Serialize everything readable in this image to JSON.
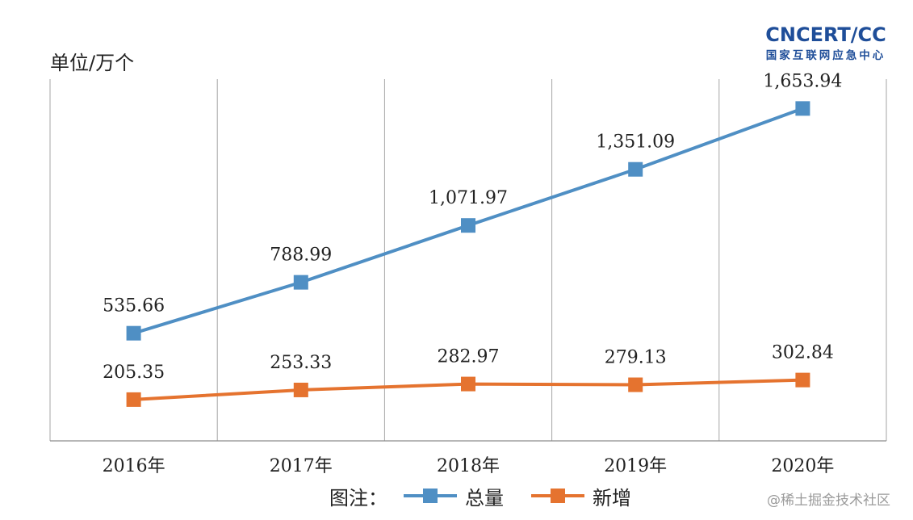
{
  "chart_data": {
    "type": "line",
    "unit_label": "单位/万个",
    "categories": [
      "2016年",
      "2017年",
      "2018年",
      "2019年",
      "2020年"
    ],
    "series": [
      {
        "name": "总量",
        "color": "#4f8fc4",
        "values": [
          535.66,
          788.99,
          1071.97,
          1351.09,
          1653.94
        ],
        "labels": [
          "535.66",
          "788.99",
          "1,071.97",
          "1,351.09",
          "1,653.94"
        ]
      },
      {
        "name": "新增",
        "color": "#e5732f",
        "values": [
          205.35,
          253.33,
          282.97,
          279.13,
          302.84
        ],
        "labels": [
          "205.35",
          "253.33",
          "282.97",
          "279.13",
          "302.84"
        ]
      }
    ],
    "ylim": [
      0,
      1800
    ],
    "grid": "vertical",
    "legend_title": "图注：",
    "legend_position": "bottom"
  },
  "logo": {
    "main": "CNCERT/CC",
    "sub": "国家互联网应急中心"
  },
  "watermark": "@稀土掘金技术社区"
}
